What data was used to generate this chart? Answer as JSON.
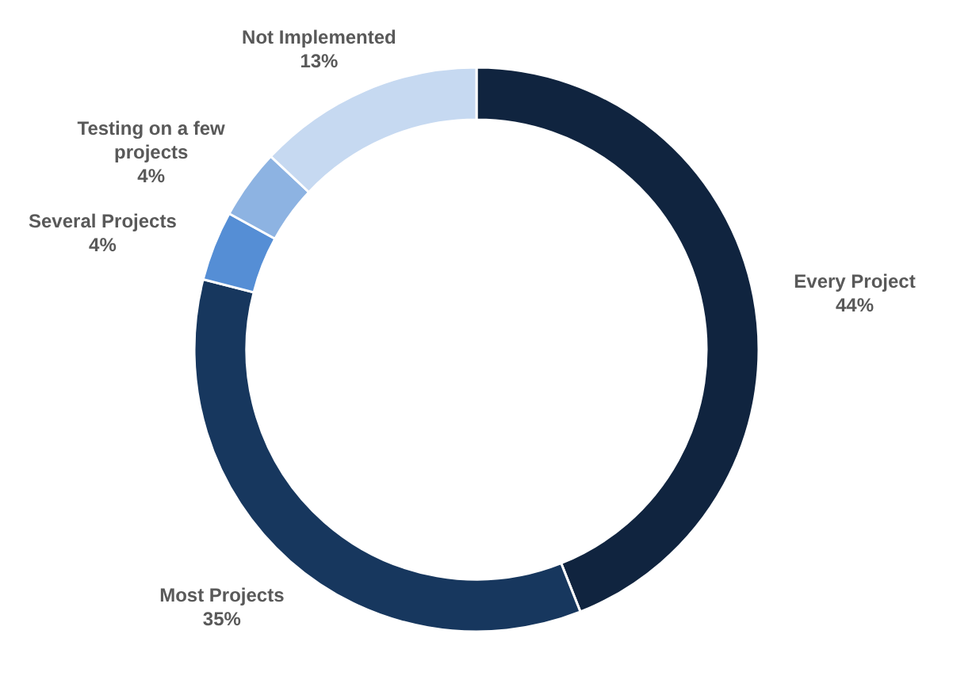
{
  "chart_data": {
    "type": "donut",
    "categories": [
      "Every Project",
      "Most Projects",
      "Several Projects",
      "Testing on a few projects",
      "Not Implemented"
    ],
    "values": [
      44,
      35,
      4,
      4,
      13
    ],
    "colors": [
      "#10243f",
      "#17375e",
      "#558ed5",
      "#8db3e2",
      "#c6d9f1"
    ],
    "value_labels": [
      "44%",
      "35%",
      "4%",
      "4%",
      "13%"
    ]
  }
}
